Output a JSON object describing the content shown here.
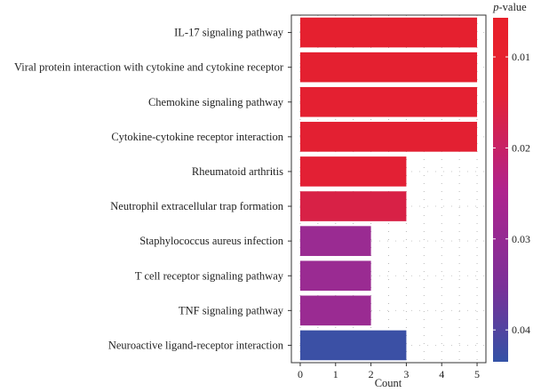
{
  "chart_data": {
    "type": "bar",
    "orientation": "horizontal",
    "categories": [
      "IL-17 signaling pathway",
      "Viral protein interaction with cytokine and cytokine receptor",
      "Chemokine signaling pathway",
      "Cytokine-cytokine receptor interaction",
      "Rheumatoid arthritis",
      "Neutrophil extracellular trap formation",
      "Staphylococcus aureus infection",
      "T cell receptor signaling pathway",
      "TNF signaling pathway",
      "Neuroactive ligand-receptor interaction"
    ],
    "values": [
      5,
      5,
      5,
      5,
      3,
      3,
      2,
      2,
      2,
      3
    ],
    "pvalues": [
      0.0067,
      0.0069,
      0.0071,
      0.0073,
      0.0075,
      0.011,
      0.028,
      0.028,
      0.028,
      0.0425
    ],
    "xlabel": "Count",
    "xlim": [
      -0.25,
      5.25
    ],
    "xticks": [
      "0",
      "1",
      "2",
      "3",
      "4",
      "5"
    ],
    "grid": "dotted",
    "legend": {
      "title_italic": "p",
      "title_rest": "-value",
      "ticks": [
        "0.01",
        "0.02",
        "0.03",
        "0.04"
      ],
      "tick_values": [
        0.01,
        0.02,
        0.03,
        0.04
      ],
      "range": [
        0.0057,
        0.0435
      ],
      "placement": "right",
      "colors": {
        "low": "#e8202a",
        "mid": "#b0238e",
        "high": "#3452a6"
      }
    }
  }
}
